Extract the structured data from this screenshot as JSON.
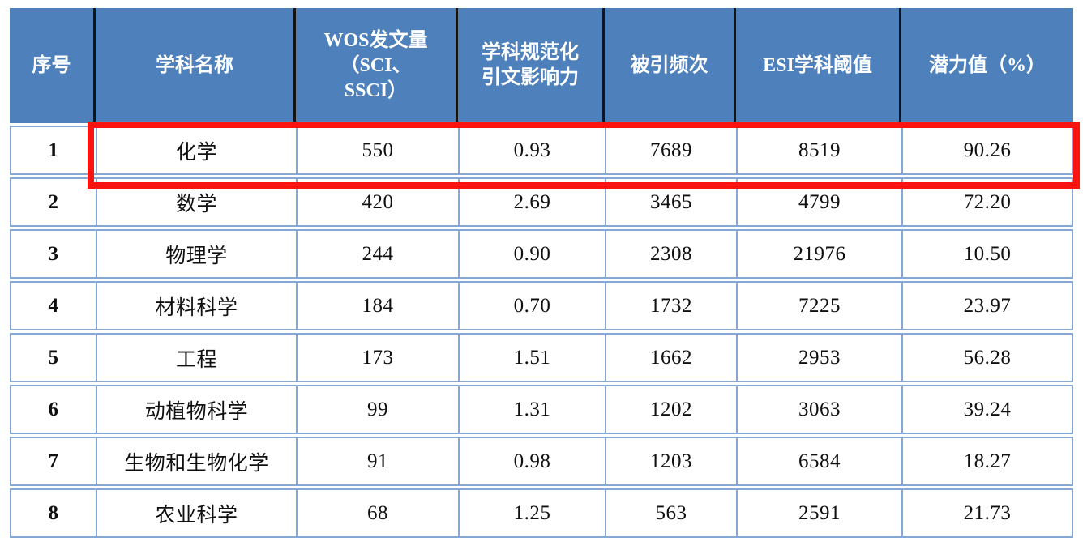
{
  "chart_data": {
    "type": "table",
    "title": "",
    "columns": [
      "序号",
      "学科名称",
      "WOS发文量（SCI、SSCI）",
      "学科规范化引文影响力",
      "被引频次",
      "ESI学科阈值",
      "潜力值（%）"
    ],
    "rows": [
      [
        "1",
        "化学",
        "550",
        "0.93",
        "7689",
        "8519",
        "90.26"
      ],
      [
        "2",
        "数学",
        "420",
        "2.69",
        "3465",
        "4799",
        "72.20"
      ],
      [
        "3",
        "物理学",
        "244",
        "0.90",
        "2308",
        "21976",
        "10.50"
      ],
      [
        "4",
        "材料科学",
        "184",
        "0.70",
        "1732",
        "7225",
        "23.97"
      ],
      [
        "5",
        "工程",
        "173",
        "1.51",
        "1662",
        "2953",
        "56.28"
      ],
      [
        "6",
        "动植物科学",
        "99",
        "1.31",
        "1202",
        "3063",
        "39.24"
      ],
      [
        "7",
        "生物和生物化学",
        "91",
        "0.98",
        "1203",
        "6584",
        "18.27"
      ],
      [
        "8",
        "农业科学",
        "68",
        "1.25",
        "563",
        "2591",
        "21.73"
      ]
    ]
  },
  "table": {
    "header_labels": [
      "序号",
      "学科名称",
      "WOS发文量\n（SCI、\nSSCI）",
      "学科规范化\n引文影响力",
      "被引频次",
      "ESI学科阈值",
      "潜力值（%）"
    ],
    "column_keys": [
      "index",
      "discipline",
      "wos-publications",
      "cnci",
      "citations",
      "esi-threshold",
      "potential"
    ],
    "highlight": {
      "highlighted_row_index": 0,
      "highlighted_discipline": "化学",
      "color": "#fa1410"
    },
    "colors": {
      "header_background": "#4e80bc",
      "header_text": "#ffffff",
      "header_separator": "#141414",
      "body_border": "#84a7d6",
      "body_text": "#101010"
    }
  }
}
